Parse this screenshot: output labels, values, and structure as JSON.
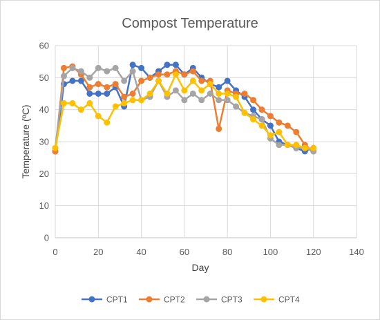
{
  "chart_data": {
    "type": "line",
    "title": "Compost Temperature",
    "xlabel": "Day",
    "ylabel": "Temperature (ºC)",
    "xlim": [
      0,
      140
    ],
    "ylim": [
      0,
      60
    ],
    "x_ticks": [
      0,
      20,
      40,
      60,
      80,
      100,
      120,
      140
    ],
    "y_ticks": [
      0,
      10,
      20,
      30,
      40,
      50,
      60
    ],
    "grid": true,
    "legend_position": "bottom",
    "series": [
      {
        "name": "CPT1",
        "color": "#4472C4",
        "x": [
          0,
          4,
          8,
          12,
          16,
          20,
          24,
          28,
          32,
          36,
          40,
          44,
          48,
          52,
          56,
          60,
          64,
          68,
          72,
          76,
          80,
          84,
          88,
          92,
          96,
          100,
          104,
          108,
          112,
          116,
          120
        ],
        "y": [
          27,
          48,
          49,
          49,
          45,
          45,
          45,
          47,
          41,
          54,
          53,
          50,
          52,
          54,
          54,
          51,
          53,
          50,
          48,
          47,
          49,
          46,
          44,
          40,
          37,
          35,
          30,
          29,
          28,
          27,
          28
        ]
      },
      {
        "name": "CPT2",
        "color": "#ED7D31",
        "x": [
          0,
          4,
          8,
          12,
          16,
          20,
          24,
          28,
          32,
          36,
          40,
          44,
          48,
          52,
          56,
          60,
          64,
          68,
          72,
          76,
          80,
          84,
          88,
          92,
          96,
          100,
          104,
          108,
          112,
          116,
          120
        ],
        "y": [
          27,
          53,
          53.5,
          51,
          47,
          48,
          47,
          48,
          44,
          45,
          49,
          50,
          51,
          51,
          52,
          51,
          52,
          49,
          49,
          34,
          46,
          45,
          45,
          43,
          40,
          38,
          36,
          35,
          33,
          29,
          27
        ]
      },
      {
        "name": "CPT3",
        "color": "#A5A5A5",
        "x": [
          0,
          4,
          8,
          12,
          16,
          20,
          24,
          28,
          32,
          36,
          40,
          44,
          48,
          52,
          56,
          60,
          64,
          68,
          72,
          76,
          80,
          84,
          88,
          92,
          96,
          100,
          104,
          108,
          112,
          116,
          120
        ],
        "y": [
          28,
          50.5,
          53,
          52,
          50,
          53,
          52,
          53,
          49,
          52,
          43,
          44,
          49,
          44,
          46,
          43,
          45,
          43,
          45,
          43,
          43,
          41,
          39,
          38,
          37,
          31,
          29,
          29,
          28,
          28,
          27
        ]
      },
      {
        "name": "CPT4",
        "color": "#FFC000",
        "x": [
          0,
          4,
          8,
          12,
          16,
          20,
          24,
          28,
          32,
          36,
          40,
          44,
          48,
          52,
          56,
          60,
          64,
          68,
          72,
          76,
          80,
          84,
          88,
          92,
          96,
          100,
          104,
          108,
          112,
          116,
          120
        ],
        "y": [
          28,
          42,
          42,
          40,
          42,
          38,
          36,
          41,
          42,
          43,
          43,
          45,
          49,
          45,
          51,
          46,
          49,
          46,
          48,
          45,
          45,
          44,
          39,
          37,
          35,
          32,
          33,
          29,
          29,
          28,
          28
        ]
      }
    ]
  }
}
